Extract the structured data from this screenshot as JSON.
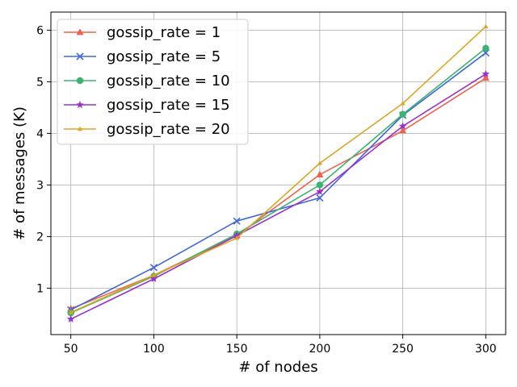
{
  "chart_data": {
    "type": "line",
    "title": "",
    "xlabel": "# of nodes",
    "ylabel": "# of messages (K)",
    "x": [
      50,
      100,
      150,
      200,
      250,
      300
    ],
    "xlim": [
      38,
      312
    ],
    "ylim": [
      0.1,
      6.35
    ],
    "xticks": [
      "50",
      "100",
      "150",
      "200",
      "250",
      "300"
    ],
    "yticks": [
      "1",
      "2",
      "3",
      "4",
      "5",
      "6"
    ],
    "grid": true,
    "legend_position": "top-left",
    "series": [
      {
        "name": "gossip_rate = 1",
        "values": [
          0.6,
          1.25,
          2.02,
          3.2,
          4.05,
          5.07
        ],
        "color": "#f0604a",
        "marker": "triangle"
      },
      {
        "name": "gossip_rate = 5",
        "values": [
          0.58,
          1.4,
          2.3,
          2.75,
          4.35,
          5.56
        ],
        "color": "#4169d6",
        "marker": "x"
      },
      {
        "name": "gossip_rate = 10",
        "values": [
          0.52,
          1.23,
          2.05,
          3.0,
          4.37,
          5.65
        ],
        "color": "#3cb371",
        "marker": "circle"
      },
      {
        "name": "gossip_rate = 15",
        "values": [
          0.4,
          1.18,
          2.02,
          2.87,
          4.14,
          5.15
        ],
        "color": "#9932cc",
        "marker": "star"
      },
      {
        "name": "gossip_rate = 20",
        "values": [
          0.53,
          1.25,
          1.97,
          3.42,
          4.58,
          6.07
        ],
        "color": "#daa520",
        "marker": "tri-small"
      }
    ]
  }
}
